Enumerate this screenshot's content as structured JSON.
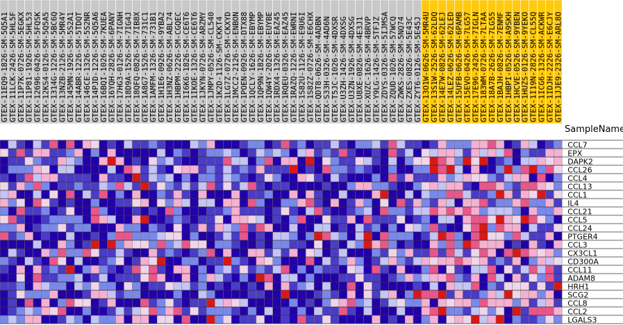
{
  "chart_data": {
    "type": "heatmap",
    "header_label": "SampleName",
    "samples": [
      "GTEX-11EQ9-1826-SM-5Q5A1",
      "GTEX-11LCK-2426-SM-5HL5F",
      "GTEX-11P7K-0726-SM-5EGKX",
      "GTEX-11P81-1926-SM-5HL53",
      "GTEX-12696-0426-SM-5FQSK",
      "GTEX-12KS4-0126-SM-5Q5A5",
      "GTEX-1314G-1226-SM-5BC6Q",
      "GTEX-13NZB-2126-SM-5MR4Y",
      "GTEX-145MN-1926-SM-5S2A1",
      "GTEX-14ABR-1226-SM-5TDQT",
      "GTEX-146CE-1326-SM-5S2NR",
      "GTEX-14PJD-1226-SM-5Q5A6",
      "GTEX-16BQI-1026-SM-7KUEA",
      "GTEX-16YQH-2826-SM-6PANY",
      "GTEX-17HG3-0126-SM-7IGNH",
      "GTEX-18D9A-1526-SM-7IG4J",
      "GTEX-18QFQ-0826-SM-7IB8X",
      "GTEX-1A8G7-1526-SM-731C1",
      "GTEX-1AMFM-1326-SM-731B1",
      "GTEX-1H1E6-0926-SM-9YBA2",
      "GTEX-1H3NZ-0626-SM-ABL74",
      "GTEX-1HBPM-2226-SM-CGQEC",
      "GTEX-1I6K6-1826-SM-CE6T6",
      "GTEX-1IKOE-1326-SM-CE6T6",
      "GTEX-1JKYN-0726-SM-ARZMY",
      "GTEX-1JMPY-0526-SM-CL540",
      "GTEX-1K2D-1126-SM-CKKT4",
      "GTEX-1LG7Z-0726-SM-CKXYD",
      "GTEX-1MCC2-2126-SM-ENBON",
      "GTEX-1POEN-0926-SM-DTX88",
      "GTEX-1QCLY-1626-SM-EBYMP",
      "GTEX-1QP9N-1826-SM-EBYMP",
      "GTEX-1QW4Y-2026-SM-EUYBE",
      "GTEX-1RDX4-1326-SM-EAZ45",
      "GTEX-1RQEU-0326-SM-EAZ45",
      "GTEX-1RAZQ-1226-SM-EWRNI",
      "GTEX-1S82U-1126-SM-E9U6I",
      "GTEX-1S82Z-0726-SM-E6CHX",
      "GTEX-QDT8-0626-SM-4ADBN",
      "GTEX-S33H-0326-SM-4AD6N",
      "GTEX-T5JC-1026-SM-4DXSR",
      "GTEX-U3ZH-1426-SM-4DXSG",
      "GTEX-U3ZN-1926-SM-4DXSG",
      "GTEX-U8XE-0826-SM-4E3J1",
      "GTEX-XUZC-1626-SM-4BRVP",
      "GTEX-Y9LG-1426-SM-5TFJZ",
      "GTEX-ZDYS-0326-SM-5IJMSA",
      "GTEX-ZQUD-1026-SM-57WCQ",
      "GTEX-ZWKS-2826-SM-5NQ74",
      "GTEX-ZXES-0826-SM-5E43C",
      "GTEX-ZYT6-0126-SM-5E45J",
      "GTEX-13O1W-0626-SM-5MR4U",
      "GTEX-13S1W-2526-SM-62LDQ",
      "GTEX-14E7W-0826-SM-62LEJ",
      "GTEX-14LEZ-0626-SM-62LED",
      "GTEX-15UFB-0626-SM-6PAMB",
      "GTEX-15EVO-0426-SM-7LG57",
      "GTEX-17E96-2426-SM-7IGLN",
      "GTEX-183WM-0726-SM-7LTAA",
      "GTEX-18A7B-2626-SM-7LG55",
      "GTEX-1BAJH-0826-SM-7ENMF",
      "GTEX-1HBPI-0526-SM-A9SKH",
      "GTEX-1HCVE-0526-SM-9YBEN",
      "GTEX-1HUZS-0126-SM-9YEKO",
      "GTEX-1I19N-2826-SM-CL55Q",
      "GTEX-1ICG6-1326-SM-ACKWR",
      "GTEX-1IDJH-2226-SM-E6CJY",
      "GTEX-1JJE9-2326-SM-ARL8O"
    ],
    "highlighted_sample_count": 17,
    "genes": [
      "CCL7",
      "EPX",
      "DAPK2",
      "CCL26",
      "CCL4",
      "CCL13",
      "CCL1",
      "IL4",
      "CCL21",
      "CCL5",
      "CCL24",
      "PTGER4",
      "CCL3",
      "CX3CL1",
      "CD300A",
      "CCL11",
      "ADAM8",
      "HRH1",
      "SCG2",
      "CCL8",
      "CCL2",
      "LGALS3"
    ],
    "color_scale": [
      "#2200aa",
      "#4a3cc7",
      "#7a88ec",
      "#c4c4f5",
      "#f0d6ea",
      "#f5b0d2",
      "#e8568a",
      "#d81818"
    ],
    "highlight_color": "#ffc90e",
    "header_bg_color": "#c8c8c8"
  }
}
